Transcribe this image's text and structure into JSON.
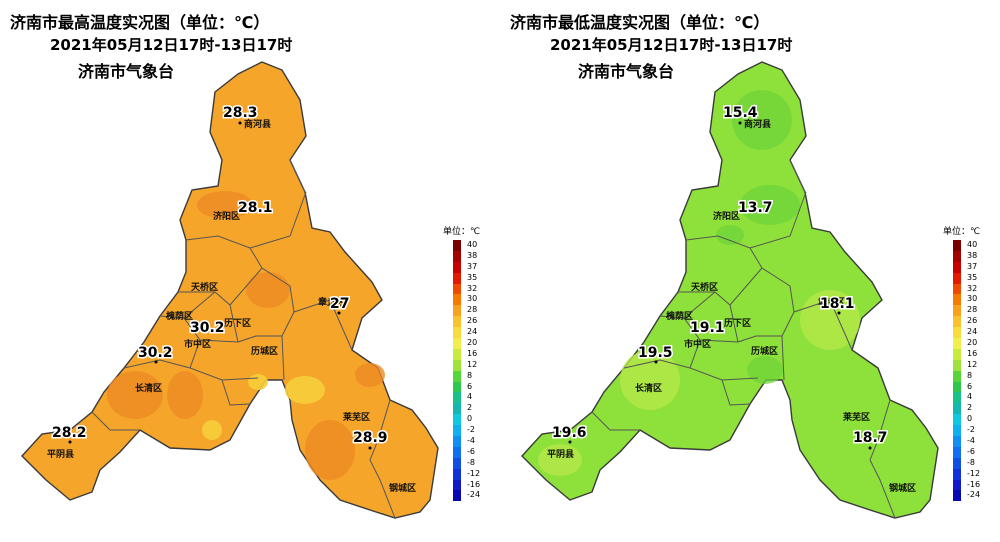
{
  "maps": [
    {
      "title": "济南市最高温度实况图（单位：℃）",
      "period": "2021年05月12日17时-13日17时",
      "agency": "济南市气象台",
      "fill_color": "#f5a52a",
      "stations": [
        {
          "name": "商河县",
          "value": "28.3"
        },
        {
          "name": "济阳区",
          "value": "28.1"
        },
        {
          "name": "天桥区",
          "value": ""
        },
        {
          "name": "章丘区",
          "value": "27"
        },
        {
          "name": "槐荫区",
          "value": ""
        },
        {
          "name": "历下区",
          "value": "30.2"
        },
        {
          "name": "市中区",
          "value": "30.2"
        },
        {
          "name": "历城区",
          "value": ""
        },
        {
          "name": "长清区",
          "value": ""
        },
        {
          "name": "平阴县",
          "value": "28.2"
        },
        {
          "name": "莱芜区",
          "value": "28.9"
        },
        {
          "name": "钢城区",
          "value": ""
        }
      ]
    },
    {
      "title": "济南市最低温度实况图（单位：℃）",
      "period": "2021年05月12日17时-13日17时",
      "agency": "济南市气象台",
      "fill_color": "#8ee03a",
      "stations": [
        {
          "name": "商河县",
          "value": "15.4"
        },
        {
          "name": "济阳区",
          "value": "13.7"
        },
        {
          "name": "天桥区",
          "value": ""
        },
        {
          "name": "章丘区",
          "value": "18.1"
        },
        {
          "name": "槐荫区",
          "value": ""
        },
        {
          "name": "历下区",
          "value": "19.1"
        },
        {
          "name": "市中区",
          "value": "19.5"
        },
        {
          "name": "历城区",
          "value": ""
        },
        {
          "name": "长清区",
          "value": ""
        },
        {
          "name": "平阴县",
          "value": "19.6"
        },
        {
          "name": "莱芜区",
          "value": ""
        },
        {
          "name": "钢城区",
          "value": "18.7"
        }
      ]
    }
  ],
  "legend": {
    "unit": "单位：℃",
    "levels": [
      {
        "label": "40",
        "color": "#7a0000"
      },
      {
        "label": "38",
        "color": "#a30000"
      },
      {
        "label": "37",
        "color": "#c80000"
      },
      {
        "label": "35",
        "color": "#e01b00"
      },
      {
        "label": "32",
        "color": "#ee4a00"
      },
      {
        "label": "30",
        "color": "#f57a00"
      },
      {
        "label": "28",
        "color": "#f8a020"
      },
      {
        "label": "26",
        "color": "#f9c030"
      },
      {
        "label": "24",
        "color": "#f7dc40"
      },
      {
        "label": "20",
        "color": "#f1ef50"
      },
      {
        "label": "16",
        "color": "#c8eb40"
      },
      {
        "label": "12",
        "color": "#9ee23a"
      },
      {
        "label": "8",
        "color": "#56d63a"
      },
      {
        "label": "6",
        "color": "#2ec850"
      },
      {
        "label": "4",
        "color": "#1cc08a"
      },
      {
        "label": "2",
        "color": "#14b8b0"
      },
      {
        "label": "0",
        "color": "#10c8e0"
      },
      {
        "label": "-2",
        "color": "#10b0f0"
      },
      {
        "label": "-4",
        "color": "#1090f0"
      },
      {
        "label": "-6",
        "color": "#1070f0"
      },
      {
        "label": "-8",
        "color": "#1050e0"
      },
      {
        "label": "-12",
        "color": "#1030d8"
      },
      {
        "label": "-16",
        "color": "#1018c8"
      },
      {
        "label": "-24",
        "color": "#0a08b0"
      }
    ]
  }
}
